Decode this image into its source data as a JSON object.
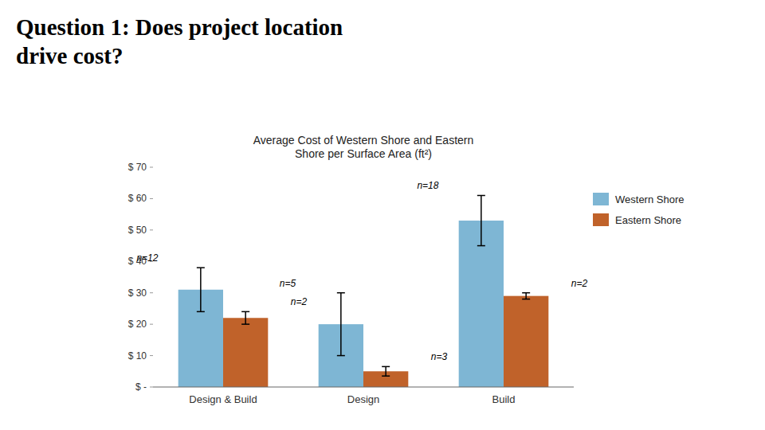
{
  "chart_data": {
    "type": "bar",
    "title": "Question 1: Does project location\ndrive cost?",
    "subtitle": "Average Cost of Western Shore and Eastern\nShore per Surface Area (ft²)",
    "categories": [
      "Design & Build",
      "Design",
      "Build"
    ],
    "series": [
      {
        "name": "Western Shore",
        "color": "#7EB6D4",
        "values": [
          31,
          20,
          53
        ],
        "errors": [
          7,
          10,
          8
        ],
        "n_labels": [
          "n=12",
          "n=5",
          "n=18"
        ]
      },
      {
        "name": "Eastern Shore",
        "color": "#C0622A",
        "values": [
          22,
          5,
          29
        ],
        "errors": [
          2,
          1.5,
          1
        ],
        "n_labels": [
          "n=2",
          "n=3",
          "n=2"
        ]
      }
    ],
    "ylim": [
      0,
      70
    ],
    "yticks": [
      {
        "value": 0,
        "label": "$ -"
      },
      {
        "value": 10,
        "label": "$ 10"
      },
      {
        "value": 20,
        "label": "$ 20"
      },
      {
        "value": 30,
        "label": "$ 30"
      },
      {
        "value": 40,
        "label": "$ 40"
      },
      {
        "value": 50,
        "label": "$ 50"
      },
      {
        "value": 60,
        "label": "$ 60"
      },
      {
        "value": 70,
        "label": "$ 70"
      }
    ],
    "grid": false,
    "legend": "right"
  }
}
